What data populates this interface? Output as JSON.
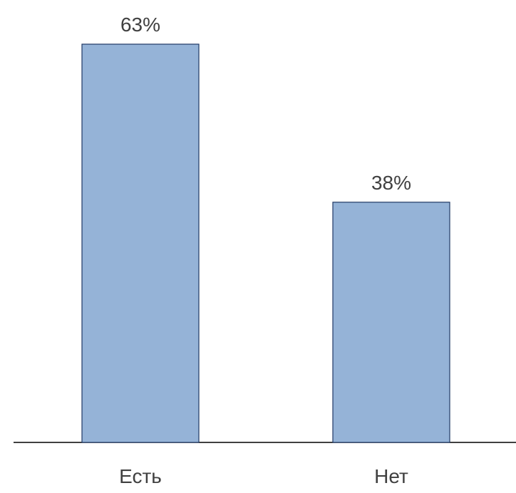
{
  "chart_data": {
    "type": "bar",
    "title": "",
    "xlabel": "",
    "ylabel": "",
    "categories": [
      "Есть",
      "Нет"
    ],
    "values": [
      63,
      38
    ],
    "value_labels": [
      "63%",
      "38%"
    ],
    "ylim": [
      0,
      63
    ],
    "grid": false,
    "legend": "none",
    "colors": {
      "bar_fill": "#95b3d7",
      "bar_stroke": "#1f3864",
      "axis": "#000000",
      "text": "#404040"
    }
  }
}
